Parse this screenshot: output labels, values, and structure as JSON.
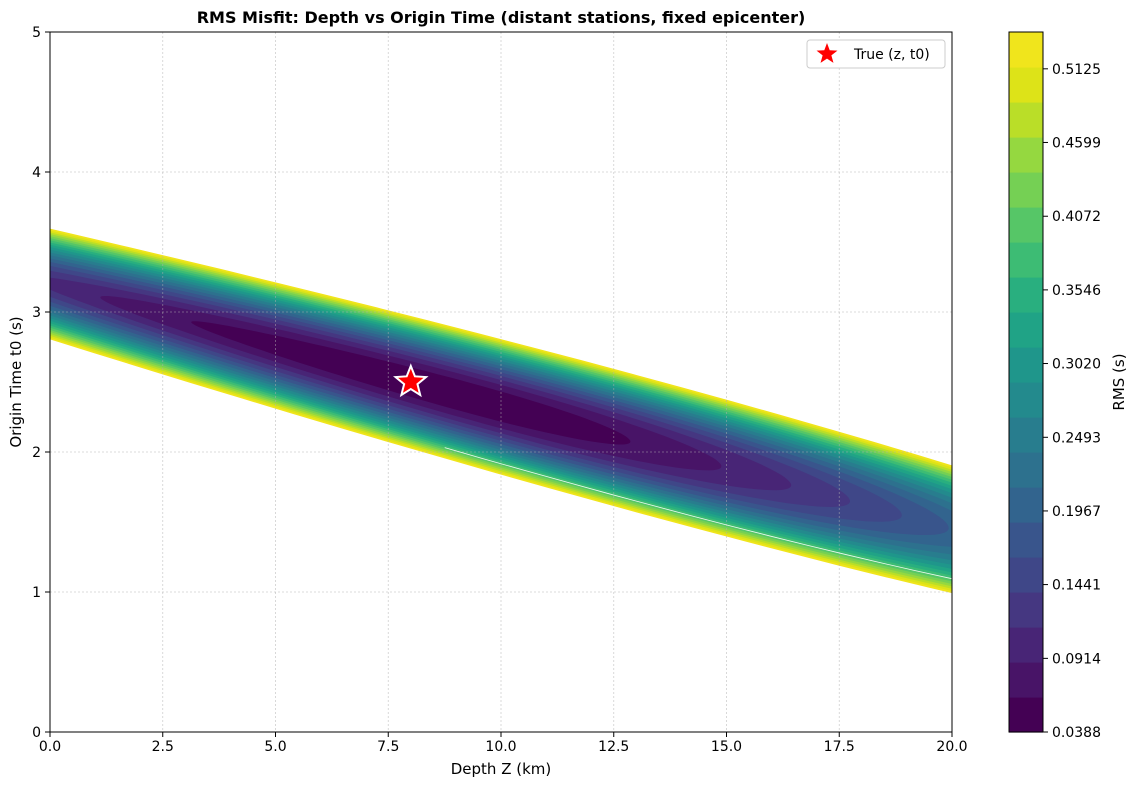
{
  "chart_data": {
    "type": "contour",
    "title": "RMS Misfit: Depth vs Origin Time (distant stations, fixed epicenter)",
    "xlabel": "Depth Z (km)",
    "ylabel": "Origin Time t0 (s)",
    "xlim": [
      0,
      20
    ],
    "ylim": [
      0,
      5
    ],
    "x_ticks": [
      "0.0",
      "2.5",
      "5.0",
      "7.5",
      "10.0",
      "12.5",
      "15.0",
      "17.5",
      "20.0"
    ],
    "y_ticks": [
      "0",
      "1",
      "2",
      "3",
      "4",
      "5"
    ],
    "grid": true,
    "colormap": "viridis",
    "minimum": {
      "depth_km": 8.0,
      "t0_s": 2.5,
      "rms": 0.0388
    },
    "contour_trend": {
      "slope_s_per_km": -0.088,
      "rms_levels": 20
    },
    "highlight_contour_rms": 0.39,
    "true_marker": {
      "depth_km": 8.0,
      "t0_s": 2.5,
      "color": "#ff0000",
      "edge_color": "#ffffff"
    },
    "legend": {
      "entries": [
        "True (z, t0)"
      ],
      "location": "upper-right"
    },
    "colorbar": {
      "label": "RMS (s)",
      "range": [
        0.0388,
        0.5388
      ],
      "tick_labels": [
        "0.0388",
        "0.0914",
        "0.1441",
        "0.1967",
        "0.2493",
        "0.3020",
        "0.3546",
        "0.4072",
        "0.4599",
        "0.5125"
      ],
      "tick_values": [
        0.0388,
        0.0914,
        0.1441,
        0.1967,
        0.2493,
        0.302,
        0.3546,
        0.4072,
        0.4599,
        0.5125
      ],
      "colors": [
        "#440154",
        "#481467",
        "#482576",
        "#453781",
        "#3f4788",
        "#39558c",
        "#32648e",
        "#2d718e",
        "#287d8e",
        "#238a8d",
        "#1f968b",
        "#20a386",
        "#29af7f",
        "#3dbc74",
        "#56c667",
        "#75d054",
        "#95d840",
        "#bade28",
        "#dde318",
        "#f0e51c"
      ]
    }
  }
}
